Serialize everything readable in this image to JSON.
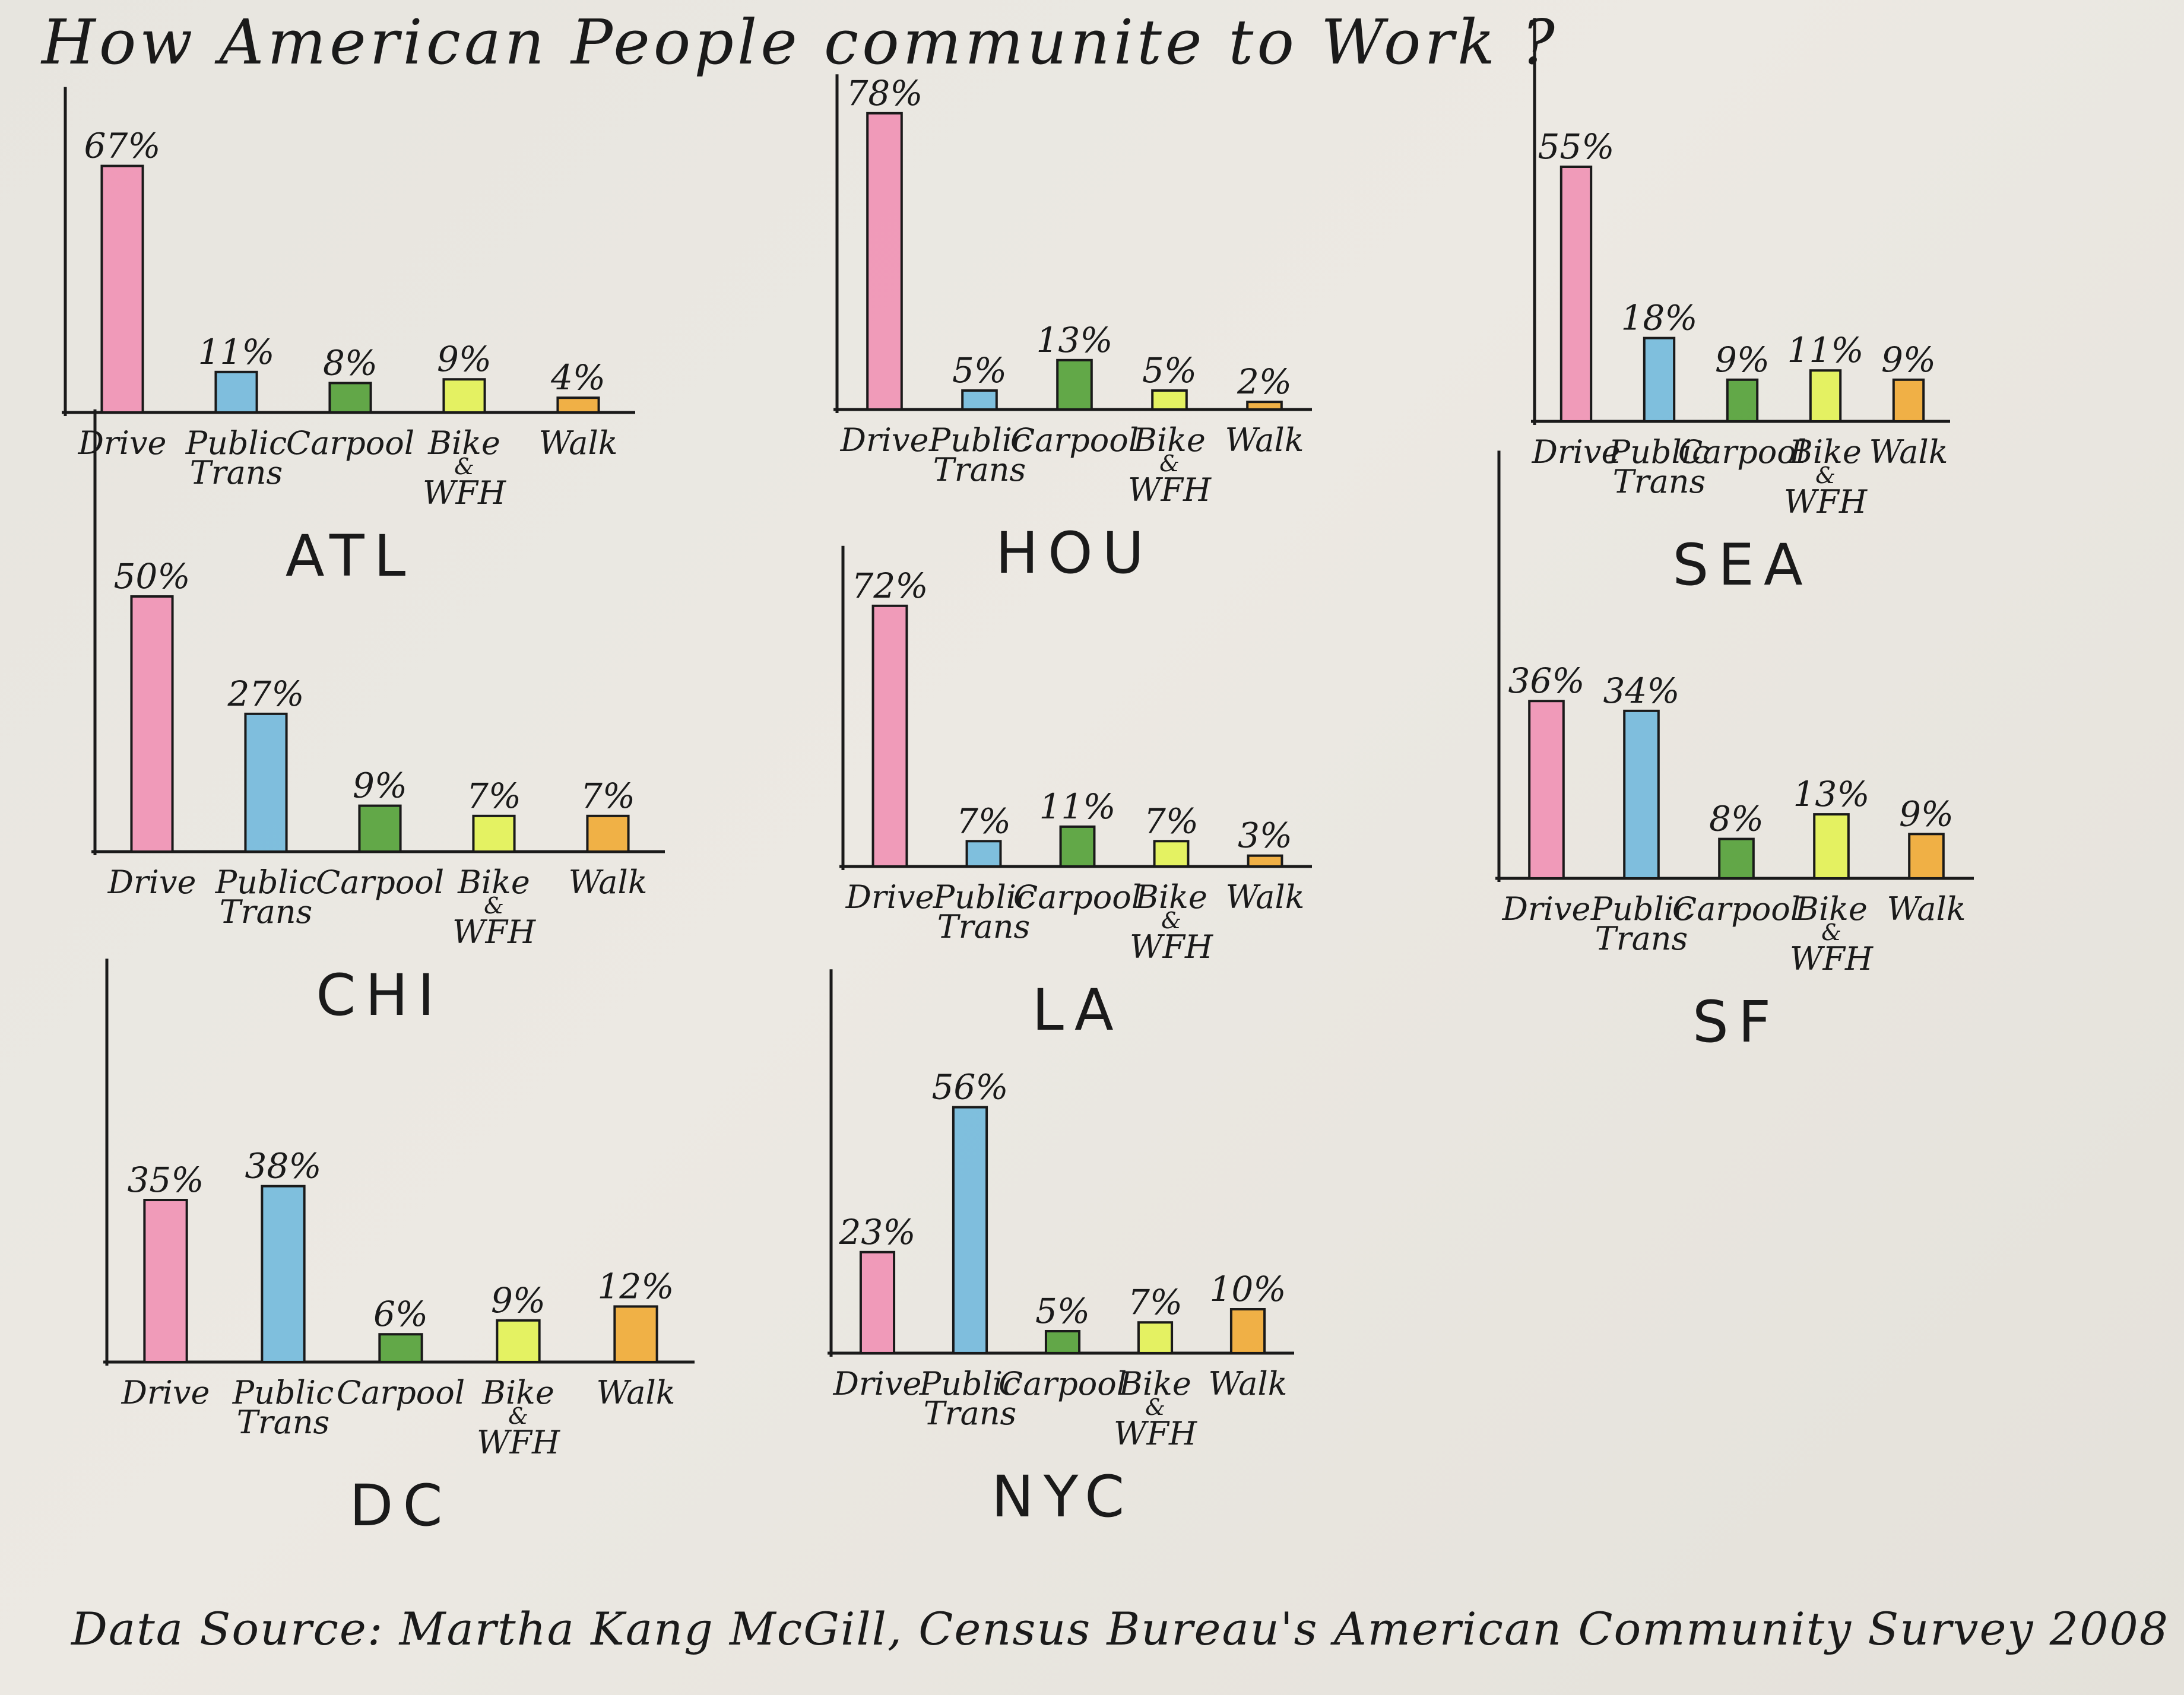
{
  "title": "How American People communite to Work ?",
  "source": "Data Source: Martha Kang McGill, Census Bureau's American Community Survey 2008",
  "colors": {
    "Drive": "#f08fb3",
    "Public Trans": "#6fb8dc",
    "Carpool": "#4f9e32",
    "Bike & WFH": "#e3f250",
    "Walk": "#f0a830"
  },
  "chart_data": [
    {
      "type": "bar",
      "city": "ATL",
      "categories": [
        "Drive",
        "Public Trans",
        "Carpool",
        "Bike & WFH",
        "Walk"
      ],
      "values": [
        67,
        11,
        8,
        9,
        4
      ],
      "value_labels": [
        "67%",
        "11%",
        "8%",
        "9%",
        "4%"
      ]
    },
    {
      "type": "bar",
      "city": "HOU",
      "categories": [
        "Drive",
        "Public Trans",
        "Carpool",
        "Bike & WFH",
        "Walk"
      ],
      "values": [
        78,
        5,
        13,
        5,
        2
      ],
      "value_labels": [
        "78%",
        "5%",
        "13%",
        "5%",
        "2%"
      ]
    },
    {
      "type": "bar",
      "city": "SEA",
      "categories": [
        "Drive",
        "Public Trans",
        "Carpool",
        "Bike & WFH",
        "Walk"
      ],
      "values": [
        55,
        18,
        9,
        11,
        9
      ],
      "value_labels": [
        "55%",
        "18%",
        "9%",
        "11%",
        "9%"
      ]
    },
    {
      "type": "bar",
      "city": "CHI",
      "categories": [
        "Drive",
        "Public Trans",
        "Carpool",
        "Bike & WFH",
        "Walk"
      ],
      "values": [
        50,
        27,
        9,
        7,
        7
      ],
      "value_labels": [
        "50%",
        "27%",
        "9%",
        "7%",
        "7%"
      ]
    },
    {
      "type": "bar",
      "city": "LA",
      "categories": [
        "Drive",
        "Public Trans",
        "Carpool",
        "Bike & WFH",
        "Walk"
      ],
      "values": [
        72,
        7,
        11,
        7,
        3
      ],
      "value_labels": [
        "72%",
        "7%",
        "11%",
        "7%",
        "3%"
      ]
    },
    {
      "type": "bar",
      "city": "SF",
      "categories": [
        "Drive",
        "Public Trans",
        "Carpool",
        "Bike & WFH",
        "Walk"
      ],
      "values": [
        36,
        34,
        8,
        13,
        9
      ],
      "value_labels": [
        "36%",
        "34%",
        "8%",
        "13%",
        "9%"
      ]
    },
    {
      "type": "bar",
      "city": "DC",
      "categories": [
        "Drive",
        "Public Trans",
        "Carpool",
        "Bike & WFH",
        "Walk"
      ],
      "values": [
        35,
        38,
        6,
        9,
        12
      ],
      "value_labels": [
        "35%",
        "38%",
        "6%",
        "9%",
        "12%"
      ]
    },
    {
      "type": "bar",
      "city": "NYC",
      "categories": [
        "Drive",
        "Public Trans",
        "Carpool",
        "Bike & WFH",
        "Walk"
      ],
      "values": [
        23,
        56,
        5,
        7,
        10
      ],
      "value_labels": [
        "23%",
        "56%",
        "5%",
        "7%",
        "10%"
      ]
    }
  ]
}
